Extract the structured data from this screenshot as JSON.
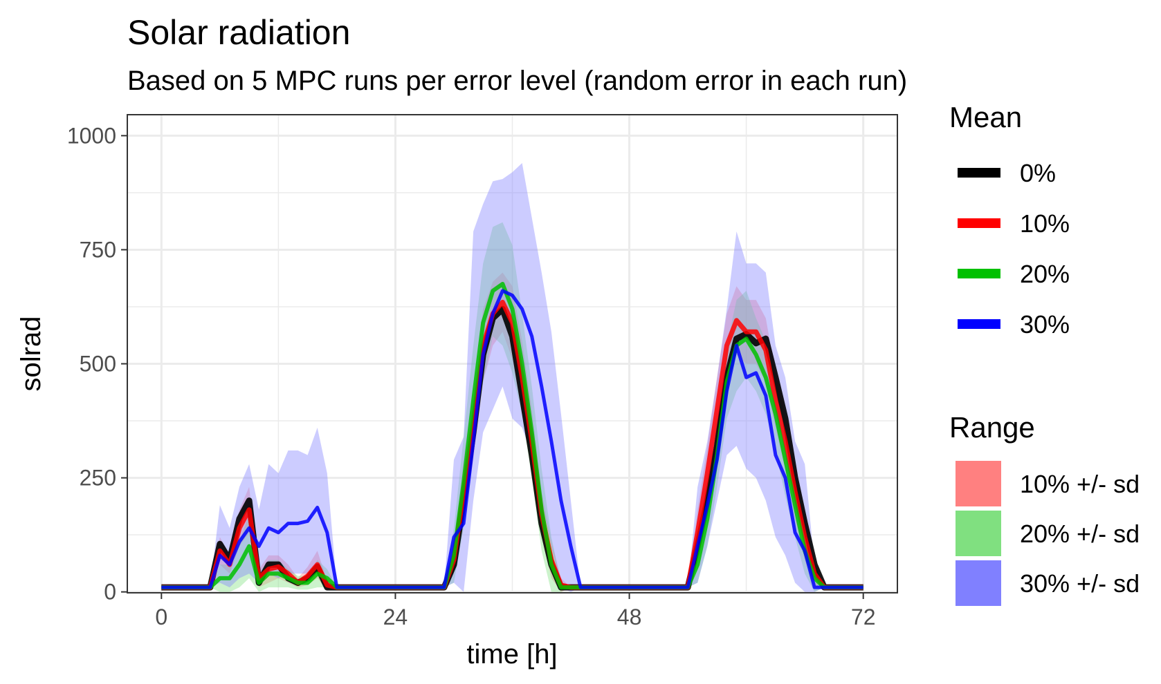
{
  "chart_data": {
    "type": "line",
    "title": "Solar radiation",
    "subtitle": "Based on 5 MPC runs per error level (random error in each run)",
    "xlabel": "time [h]",
    "ylabel": "solrad",
    "xlim": [
      -3.5,
      75.5
    ],
    "ylim": [
      -2,
      1046
    ],
    "x_ticks": [
      0,
      24,
      48,
      72
    ],
    "x_tick_labels": [
      "0",
      "24",
      "48",
      "72"
    ],
    "y_ticks": [
      0,
      250,
      500,
      750,
      1000
    ],
    "y_tick_labels": [
      "0",
      "250",
      "500",
      "750",
      "1000"
    ],
    "grid": true,
    "legend_position": "right",
    "legend_mean_title": "Mean",
    "legend_range_title": "Range",
    "x": [
      0,
      1,
      2,
      3,
      4,
      5,
      6,
      7,
      8,
      9,
      10,
      11,
      12,
      13,
      14,
      15,
      16,
      17,
      18,
      19,
      20,
      21,
      22,
      23,
      24,
      25,
      26,
      27,
      28,
      29,
      30,
      31,
      32,
      33,
      34,
      35,
      36,
      37,
      38,
      39,
      40,
      41,
      42,
      43,
      44,
      45,
      46,
      47,
      48,
      49,
      50,
      51,
      52,
      53,
      54,
      55,
      56,
      57,
      58,
      59,
      60,
      61,
      62,
      63,
      64,
      65,
      66,
      67,
      68,
      69,
      70,
      71,
      72
    ],
    "series": [
      {
        "name": "0%",
        "color": "#000000",
        "values": [
          10,
          10,
          10,
          10,
          10,
          10,
          105,
          70,
          160,
          200,
          20,
          60,
          60,
          30,
          20,
          30,
          55,
          10,
          10,
          10,
          10,
          10,
          10,
          10,
          10,
          10,
          10,
          10,
          10,
          10,
          60,
          200,
          350,
          520,
          600,
          620,
          560,
          430,
          300,
          150,
          60,
          10,
          10,
          10,
          10,
          10,
          10,
          10,
          10,
          10,
          10,
          10,
          10,
          10,
          10,
          100,
          200,
          320,
          470,
          555,
          565,
          545,
          555,
          470,
          380,
          250,
          150,
          60,
          10,
          10,
          10,
          10,
          10
        ]
      },
      {
        "name": "10%",
        "color": "#ff0000",
        "values": [
          10,
          10,
          10,
          10,
          10,
          10,
          90,
          60,
          140,
          180,
          30,
          50,
          55,
          40,
          20,
          35,
          60,
          15,
          10,
          10,
          10,
          10,
          10,
          10,
          10,
          10,
          10,
          10,
          10,
          10,
          70,
          220,
          370,
          540,
          610,
          635,
          590,
          470,
          330,
          170,
          70,
          15,
          10,
          10,
          10,
          10,
          10,
          10,
          10,
          10,
          10,
          10,
          10,
          10,
          10,
          130,
          260,
          400,
          540,
          595,
          570,
          570,
          530,
          420,
          330,
          220,
          120,
          40,
          10,
          10,
          10,
          10,
          10
        ]
      },
      {
        "name": "20%",
        "color": "#00c000",
        "values": [
          10,
          10,
          10,
          10,
          10,
          10,
          30,
          30,
          60,
          100,
          20,
          40,
          40,
          30,
          20,
          20,
          40,
          30,
          10,
          10,
          10,
          10,
          10,
          10,
          10,
          10,
          10,
          10,
          10,
          10,
          80,
          240,
          420,
          590,
          660,
          675,
          620,
          500,
          350,
          180,
          60,
          10,
          10,
          10,
          10,
          10,
          10,
          10,
          10,
          10,
          10,
          10,
          10,
          10,
          10,
          60,
          160,
          300,
          460,
          540,
          555,
          520,
          470,
          390,
          290,
          190,
          90,
          30,
          10,
          10,
          10,
          10,
          10
        ]
      },
      {
        "name": "30%",
        "color": "#0000ff",
        "values": [
          10,
          10,
          10,
          10,
          10,
          10,
          80,
          60,
          110,
          140,
          100,
          140,
          130,
          150,
          150,
          155,
          185,
          130,
          10,
          10,
          10,
          10,
          10,
          10,
          10,
          10,
          10,
          10,
          10,
          10,
          120,
          150,
          330,
          520,
          610,
          660,
          650,
          620,
          560,
          450,
          330,
          200,
          100,
          10,
          10,
          10,
          10,
          10,
          10,
          10,
          10,
          10,
          10,
          10,
          10,
          100,
          190,
          290,
          440,
          540,
          470,
          480,
          430,
          300,
          250,
          130,
          90,
          10,
          10,
          10,
          10,
          10,
          10
        ]
      }
    ],
    "ranges": [
      {
        "name": "10% +/- sd",
        "color": "#ff8080",
        "lower": [
          10,
          10,
          10,
          10,
          10,
          10,
          60,
          40,
          100,
          130,
          10,
          20,
          30,
          20,
          10,
          15,
          30,
          5,
          10,
          10,
          10,
          10,
          10,
          10,
          10,
          10,
          10,
          10,
          10,
          10,
          40,
          150,
          290,
          460,
          540,
          570,
          510,
          390,
          260,
          120,
          30,
          0,
          10,
          10,
          10,
          10,
          10,
          10,
          10,
          10,
          10,
          10,
          10,
          10,
          10,
          80,
          200,
          330,
          470,
          520,
          500,
          500,
          460,
          360,
          270,
          160,
          70,
          10,
          10,
          10,
          10,
          10,
          10
        ],
        "upper": [
          10,
          10,
          10,
          10,
          10,
          10,
          120,
          80,
          180,
          230,
          50,
          80,
          80,
          60,
          30,
          55,
          90,
          25,
          10,
          10,
          10,
          10,
          10,
          10,
          10,
          10,
          10,
          10,
          10,
          10,
          100,
          290,
          450,
          620,
          680,
          700,
          670,
          550,
          400,
          220,
          110,
          30,
          10,
          10,
          10,
          10,
          10,
          10,
          10,
          10,
          10,
          10,
          10,
          10,
          10,
          180,
          320,
          470,
          610,
          670,
          640,
          640,
          600,
          480,
          390,
          280,
          170,
          70,
          10,
          10,
          10,
          10,
          10
        ]
      },
      {
        "name": "20% +/- sd",
        "color": "#80e080",
        "lower": [
          10,
          10,
          10,
          10,
          10,
          10,
          0,
          0,
          10,
          30,
          0,
          10,
          10,
          10,
          5,
          5,
          10,
          10,
          10,
          10,
          10,
          10,
          10,
          10,
          10,
          10,
          10,
          10,
          10,
          10,
          20,
          140,
          300,
          460,
          560,
          540,
          480,
          390,
          250,
          90,
          0,
          0,
          10,
          10,
          10,
          10,
          10,
          10,
          10,
          10,
          10,
          10,
          10,
          10,
          10,
          20,
          100,
          230,
          380,
          440,
          470,
          440,
          390,
          310,
          210,
          120,
          40,
          0,
          10,
          10,
          10,
          10,
          10
        ],
        "upper": [
          10,
          10,
          10,
          10,
          10,
          10,
          60,
          60,
          110,
          170,
          40,
          70,
          70,
          50,
          35,
          35,
          70,
          50,
          10,
          10,
          10,
          10,
          10,
          10,
          10,
          10,
          10,
          10,
          10,
          10,
          140,
          340,
          540,
          720,
          800,
          810,
          760,
          610,
          450,
          270,
          120,
          20,
          10,
          10,
          10,
          10,
          10,
          10,
          10,
          10,
          10,
          10,
          10,
          10,
          10,
          100,
          220,
          370,
          540,
          640,
          660,
          600,
          550,
          470,
          370,
          260,
          140,
          60,
          10,
          10,
          10,
          10,
          10
        ]
      },
      {
        "name": "30% +/- sd",
        "color": "#8080ff",
        "lower": [
          10,
          10,
          10,
          10,
          10,
          10,
          20,
          10,
          30,
          40,
          20,
          40,
          30,
          40,
          40,
          40,
          60,
          20,
          10,
          10,
          10,
          10,
          10,
          10,
          10,
          10,
          10,
          10,
          10,
          10,
          20,
          0,
          200,
          350,
          400,
          450,
          380,
          360,
          300,
          200,
          100,
          10,
          0,
          10,
          10,
          10,
          10,
          10,
          10,
          10,
          10,
          10,
          10,
          10,
          10,
          20,
          100,
          200,
          300,
          320,
          270,
          250,
          200,
          120,
          80,
          20,
          0,
          0,
          10,
          10,
          10,
          10,
          10
        ],
        "upper": [
          10,
          10,
          10,
          10,
          10,
          10,
          190,
          140,
          230,
          280,
          180,
          280,
          260,
          310,
          310,
          300,
          360,
          260,
          10,
          10,
          10,
          10,
          10,
          10,
          10,
          10,
          10,
          10,
          10,
          10,
          290,
          340,
          790,
          850,
          900,
          905,
          920,
          940,
          820,
          700,
          570,
          390,
          200,
          10,
          10,
          10,
          10,
          10,
          10,
          10,
          10,
          10,
          10,
          10,
          10,
          230,
          330,
          470,
          620,
          790,
          720,
          720,
          700,
          540,
          470,
          330,
          280,
          60,
          10,
          10,
          10,
          10,
          10
        ]
      }
    ]
  }
}
